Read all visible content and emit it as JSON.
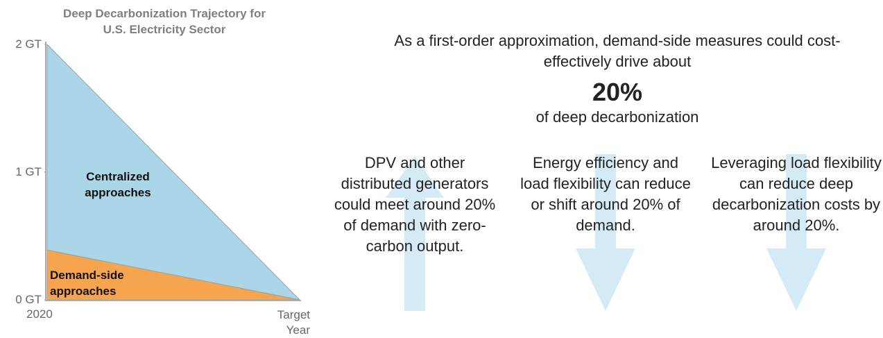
{
  "chart_data": {
    "type": "area",
    "title": "Deep Decarbonization Trajectory for U.S. Electricity Sector",
    "categories": [
      "2020",
      "Target Year"
    ],
    "series": [
      {
        "name": "Demand-side approaches",
        "color": "#f6a44e",
        "values": [
          0.39,
          0
        ]
      },
      {
        "name": "Centralized approaches",
        "color": "#abd6e8",
        "values": [
          1.61,
          0
        ]
      }
    ],
    "ylim": [
      0,
      2
    ],
    "yticks": [
      {
        "value": 0,
        "label": "0 GT"
      },
      {
        "value": 1,
        "label": "1 GT"
      },
      {
        "value": 2,
        "label": "2 GT"
      }
    ],
    "stacked": true
  },
  "callout": {
    "headline": "As a first-order approximation, demand-side measures could cost-effectively drive about",
    "highlight": "20%",
    "subline": "of deep decarbonization"
  },
  "columns": [
    {
      "text": "DPV and other distributed generators could meet around 20% of demand with zero-carbon output."
    },
    {
      "text": "Energy efficiency and load flexibility can reduce or shift around 20% of demand."
    },
    {
      "text": "Leveraging load flexibility can reduce deep decarbonization costs by around 20%."
    }
  ]
}
